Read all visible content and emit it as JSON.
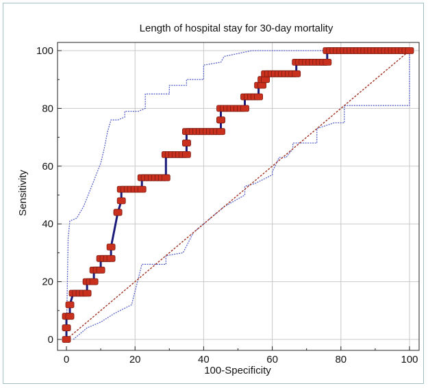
{
  "chart_data": {
    "type": "line",
    "title": "Length of hospital stay for 30-day mortality",
    "xlabel": "100-Specificity",
    "ylabel": "Sensitivity",
    "xlim": [
      0,
      100
    ],
    "ylim": [
      0,
      100
    ],
    "x_ticks": [
      0,
      20,
      40,
      60,
      80,
      100
    ],
    "y_ticks": [
      0,
      20,
      40,
      60,
      80,
      100
    ],
    "grid": true,
    "colors": {
      "roc": "#1a1a7a",
      "roc_marker": "#c9301e",
      "ci": "#5560c8",
      "diagonal": "#a03020"
    },
    "series": [
      {
        "role": "roc",
        "x": [
          0,
          0,
          0,
          0,
          1,
          1,
          2,
          6,
          6,
          8,
          8,
          10,
          10,
          13,
          13,
          15,
          15,
          16,
          16,
          22,
          22,
          29,
          29,
          35,
          35,
          35,
          35,
          45,
          45,
          45,
          45,
          52,
          52,
          56,
          56,
          57,
          57,
          58,
          58,
          67,
          67,
          75,
          75,
          76,
          76,
          100
        ],
        "y": [
          0,
          4,
          4,
          8,
          8,
          12,
          16,
          16,
          20,
          20,
          24,
          24,
          28,
          28,
          32,
          44,
          44,
          48,
          52,
          52,
          56,
          56,
          64,
          64,
          68,
          68,
          72,
          72,
          76,
          76,
          80,
          80,
          84,
          84,
          88,
          88,
          90,
          90,
          92,
          92,
          96,
          96,
          96,
          96,
          100,
          100
        ]
      },
      {
        "role": "ci-upper",
        "x": [
          0,
          0.5,
          1,
          3,
          5,
          7,
          9,
          10,
          11,
          12,
          13,
          15,
          17,
          17,
          21,
          23,
          23,
          30,
          30,
          35,
          35,
          40,
          40,
          45,
          46,
          50,
          54,
          76,
          100
        ],
        "y": [
          0,
          35,
          41,
          42,
          46,
          52,
          58,
          61,
          66,
          72,
          76,
          76,
          77,
          79,
          79,
          80,
          85,
          85,
          88,
          88,
          90,
          90,
          95,
          96,
          98,
          99,
          100,
          100,
          100
        ]
      },
      {
        "role": "ci-lower",
        "x": [
          2,
          4,
          6,
          10,
          14,
          19,
          22,
          29,
          29,
          34,
          37,
          42,
          46,
          52,
          52,
          55,
          60,
          60,
          62,
          64,
          66,
          66,
          73,
          73,
          78,
          81,
          81,
          100,
          100
        ],
        "y": [
          0,
          2,
          4,
          6,
          9,
          12,
          26,
          26,
          29,
          30,
          37,
          42,
          46,
          50,
          53,
          54,
          57,
          58,
          63,
          63,
          66,
          68,
          68,
          73,
          75,
          75,
          81,
          81,
          100
        ]
      },
      {
        "role": "diagonal",
        "x": [
          0,
          100
        ],
        "y": [
          0,
          100
        ]
      }
    ]
  }
}
